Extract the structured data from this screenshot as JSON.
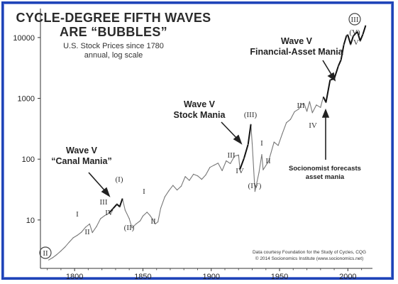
{
  "chart_data": {
    "type": "line",
    "title": "CYCLE-DEGREE FIFTH WAVES",
    "title_line2": "ARE “BUBBLES”",
    "subtitle": "U.S. Stock Prices since 1780",
    "subtitle2": "annual, log scale",
    "xlabel": "",
    "ylabel": "",
    "x_range": [
      1775,
      2018
    ],
    "y_range": [
      1.6,
      30000
    ],
    "log_y": true,
    "grid": false,
    "x_ticks": [
      "1800",
      "1850",
      "1900",
      "1950",
      "2000"
    ],
    "y_ticks": [
      "10",
      "100",
      "1000",
      "10000"
    ],
    "series": [
      {
        "x": [
          1781,
          1784,
          1787,
          1790,
          1793,
          1796,
          1799,
          1802,
          1805,
          1808,
          1811,
          1813,
          1816,
          1819,
          1822,
          1825,
          1828,
          1831,
          1833,
          1835,
          1837,
          1840,
          1842,
          1845,
          1848,
          1850,
          1853,
          1855,
          1857,
          1859,
          1861,
          1863,
          1866,
          1869,
          1872,
          1875,
          1878,
          1881,
          1884,
          1887,
          1890,
          1893,
          1896,
          1899,
          1902,
          1905,
          1908,
          1911,
          1914,
          1917,
          1920,
          1921,
          1924,
          1927,
          1929,
          1930,
          1932,
          1935,
          1937,
          1938,
          1942,
          1946,
          1949,
          1952,
          1955,
          1958,
          1961,
          1964,
          1966,
          1968,
          1970,
          1972,
          1974,
          1977,
          1980,
          1982,
          1984,
          1987,
          1990,
          1993,
          1995,
          1997,
          1999,
          2000,
          2002,
          2004,
          2007,
          2009,
          2011,
          2013
        ],
        "values": [
          2.2,
          2.4,
          2.7,
          3.1,
          3.6,
          4.3,
          5.1,
          5.6,
          6.3,
          7.6,
          8.6,
          6.2,
          7.8,
          10.5,
          11.8,
          12.8,
          15.3,
          18.2,
          16.5,
          22.5,
          14.5,
          10.5,
          7.4,
          8.6,
          9.7,
          11.6,
          13.4,
          12.0,
          10.4,
          8.6,
          9.3,
          15.6,
          24.0,
          30.2,
          37.1,
          31.1,
          35.9,
          51.7,
          44.7,
          56.5,
          53.3,
          46.6,
          55.0,
          73.1,
          79.5,
          86.0,
          64.6,
          94.0,
          84.6,
          112.0,
          117.0,
          68.0,
          103.7,
          175.0,
          375.0,
          178.0,
          29.5,
          60.7,
          119.0,
          66.7,
          92.5,
          191.0,
          168.0,
          262.0,
          398.0,
          450.0,
          603.0,
          665.0,
          800.0,
          810.0,
          612.0,
          885.0,
          580.0,
          780.0,
          710.0,
          1060.0,
          860.0,
          2000.0,
          2100.0,
          3400.0,
          4300.0,
          7600.0,
          10700.0,
          11000.0,
          7700.0,
          10600.0,
          12500.0,
          8800.0,
          11300.0,
          15800.0
        ]
      }
    ],
    "annotations": {
      "wave_v_canal_line1": "Wave V",
      "wave_v_canal_line2": "“Canal Mania”",
      "wave_v_stock_line1": "Wave V",
      "wave_v_stock_line2": "Stock Mania",
      "wave_v_financial_line1": "Wave V",
      "wave_v_financial_line2": "Financial-Asset Mania",
      "socionomist_line1": "Socionomist forecasts",
      "socionomist_line2": "asset mania",
      "wave_labels": [
        "II",
        "I",
        "II",
        "III",
        "IV",
        "(I)",
        "(II)",
        "I",
        "II",
        "III",
        "IV",
        "(III)",
        "(IV)",
        "I",
        "II",
        "III",
        "IV",
        "(V)",
        "V",
        "III",
        "II"
      ],
      "credit_line1": "Data courtesy Foundation for the Study of Cycles, CQG",
      "credit_line2": "© 2014 Socionomics Institute (www.socionomics.net)"
    }
  },
  "colors": {
    "frame_border": "#1f44b8",
    "line": "#777777",
    "line_emphasis": "#111111"
  }
}
